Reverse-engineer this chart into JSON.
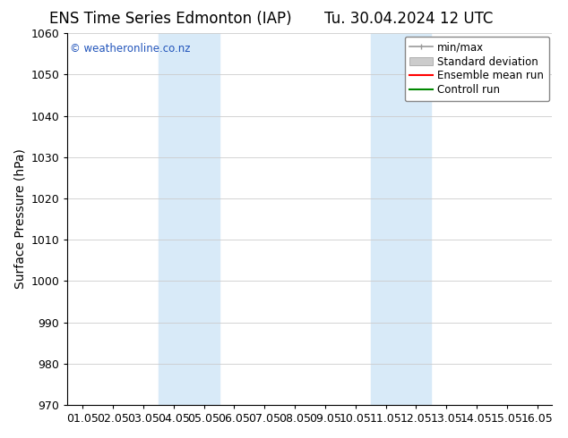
{
  "title_left": "ENS Time Series Edmonton (IAP)",
  "title_right": "Tu. 30.04.2024 12 UTC",
  "ylabel": "Surface Pressure (hPa)",
  "ylim": [
    970,
    1060
  ],
  "yticks": [
    970,
    980,
    990,
    1000,
    1010,
    1020,
    1030,
    1040,
    1050,
    1060
  ],
  "xtick_labels": [
    "01.05",
    "02.05",
    "03.05",
    "04.05",
    "05.05",
    "06.05",
    "07.05",
    "08.05",
    "09.05",
    "10.05",
    "11.05",
    "12.05",
    "13.05",
    "14.05",
    "15.05",
    "16.05"
  ],
  "shaded_bands": [
    {
      "xstart": 3,
      "xend": 5,
      "color": "#d8eaf8"
    },
    {
      "xstart": 10,
      "xend": 12,
      "color": "#d8eaf8"
    }
  ],
  "watermark_text": "© weatheronline.co.nz",
  "watermark_color": "#2255bb",
  "legend_entries": [
    {
      "label": "min/max",
      "color": "#999999"
    },
    {
      "label": "Standard deviation",
      "color": "#cccccc"
    },
    {
      "label": "Ensemble mean run",
      "color": "#ff0000"
    },
    {
      "label": "Controll run",
      "color": "#008800"
    }
  ],
  "bg_color": "#ffffff",
  "plot_bg_color": "#f5f5f5",
  "grid_color": "#cccccc",
  "title_fontsize": 12,
  "axis_label_fontsize": 10,
  "tick_fontsize": 9,
  "legend_fontsize": 8.5
}
